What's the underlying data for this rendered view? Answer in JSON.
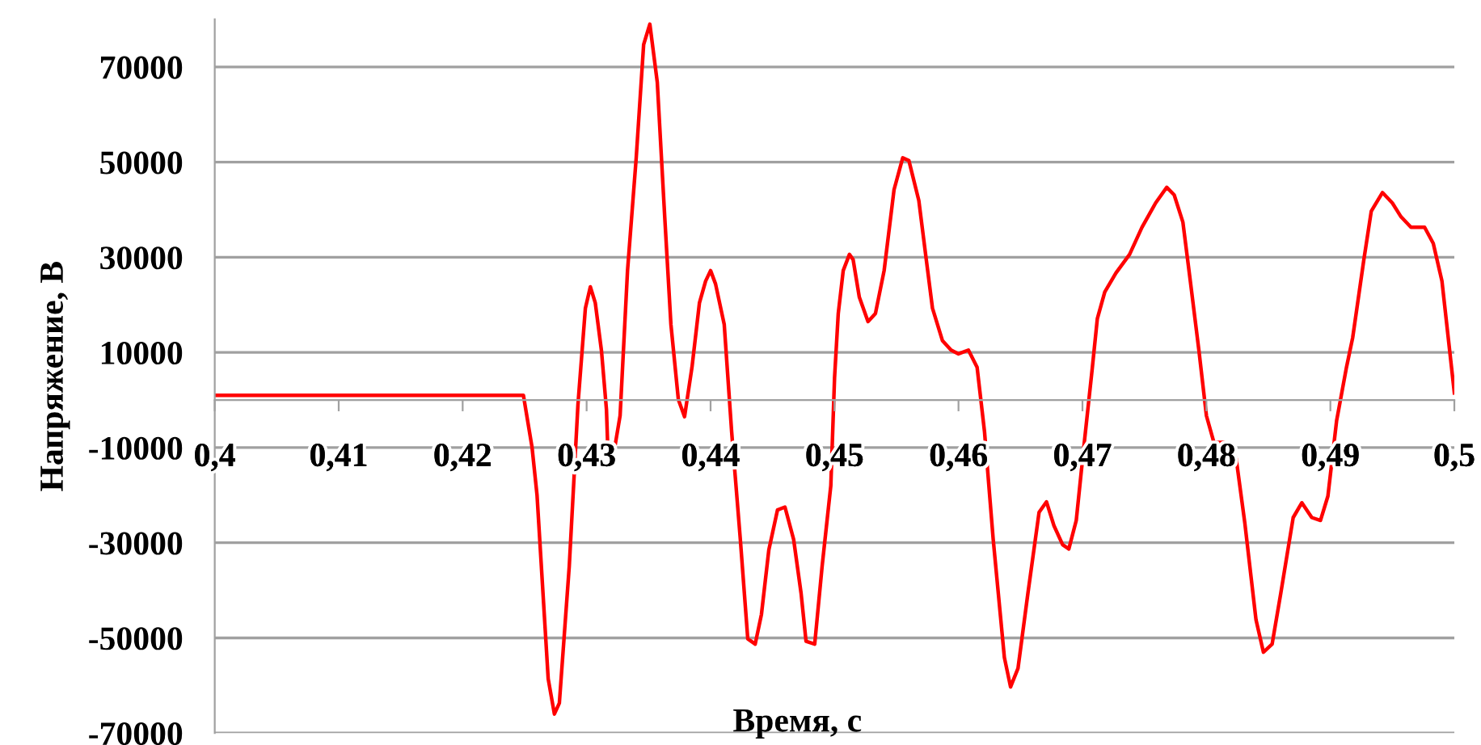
{
  "chart_data": {
    "type": "line",
    "xlabel": "Время, с",
    "ylabel": "Напряжение, В",
    "xlim": [
      0.4,
      0.5
    ],
    "ylim": [
      -70000,
      80000
    ],
    "xticks": [
      {
        "value": 0.4,
        "label": "0,4"
      },
      {
        "value": 0.41,
        "label": "0,41"
      },
      {
        "value": 0.42,
        "label": "0,42"
      },
      {
        "value": 0.43,
        "label": "0,43"
      },
      {
        "value": 0.44,
        "label": "0,44"
      },
      {
        "value": 0.45,
        "label": "0,45"
      },
      {
        "value": 0.46,
        "label": "0,46"
      },
      {
        "value": 0.47,
        "label": "0,47"
      },
      {
        "value": 0.48,
        "label": "0,48"
      },
      {
        "value": 0.49,
        "label": "0,49"
      },
      {
        "value": 0.5,
        "label": "0,5"
      }
    ],
    "yticks": [
      -70000,
      -50000,
      -30000,
      -10000,
      10000,
      30000,
      50000,
      70000
    ],
    "grid": "y",
    "legend": false,
    "marker": "none",
    "line_style": "solid",
    "series": [
      {
        "color": "#ff0000",
        "x": [
          0.4,
          0.4249,
          0.4256,
          0.426,
          0.4269,
          0.4274,
          0.4278,
          0.4286,
          0.4293,
          0.4299,
          0.4303,
          0.4307,
          0.4312,
          0.4316,
          0.4317,
          0.4323,
          0.4327,
          0.4333,
          0.434,
          0.4346,
          0.4351,
          0.4357,
          0.4363,
          0.4368,
          0.4374,
          0.4379,
          0.4385,
          0.4391,
          0.4396,
          0.44,
          0.4404,
          0.4411,
          0.4417,
          0.4424,
          0.443,
          0.4436,
          0.4441,
          0.4447,
          0.4454,
          0.446,
          0.4467,
          0.4473,
          0.4477,
          0.4484,
          0.449,
          0.4497,
          0.45,
          0.4503,
          0.4507,
          0.4512,
          0.4515,
          0.452,
          0.4527,
          0.4533,
          0.454,
          0.4548,
          0.4555,
          0.456,
          0.4568,
          0.4574,
          0.4579,
          0.4587,
          0.4594,
          0.46,
          0.4608,
          0.4615,
          0.4621,
          0.4628,
          0.4637,
          0.4642,
          0.4648,
          0.4656,
          0.4665,
          0.4671,
          0.4677,
          0.4684,
          0.4689,
          0.4695,
          0.4701,
          0.4708,
          0.4712,
          0.4718,
          0.4727,
          0.4738,
          0.4748,
          0.4759,
          0.4768,
          0.4774,
          0.4781,
          0.4787,
          0.4794,
          0.48,
          0.4806,
          0.4817,
          0.4824,
          0.4831,
          0.484,
          0.4846,
          0.4853,
          0.486,
          0.487,
          0.4877,
          0.4885,
          0.4892,
          0.4898,
          0.4905,
          0.4913,
          0.4918,
          0.4927,
          0.4933,
          0.4942,
          0.495,
          0.4957,
          0.4965,
          0.4976,
          0.4983,
          0.499,
          0.5
        ],
        "values": [
          1000,
          1000,
          -10000,
          -20000,
          -58600,
          -66000,
          -63700,
          -34900,
          -1000,
          19300,
          23800,
          20400,
          10300,
          -2000,
          -9500,
          -9500,
          -3300,
          27200,
          50900,
          74700,
          79000,
          66800,
          38500,
          15900,
          100,
          -3500,
          6900,
          20400,
          25000,
          27200,
          24400,
          15900,
          -6700,
          -29300,
          -50200,
          -51300,
          -45100,
          -31500,
          -23100,
          -22500,
          -29300,
          -40600,
          -50700,
          -51300,
          -34900,
          -18000,
          4600,
          18200,
          27200,
          30600,
          29500,
          21600,
          16500,
          18200,
          27200,
          44200,
          50900,
          50300,
          41900,
          29500,
          19300,
          12500,
          10500,
          9700,
          10500,
          6900,
          -6700,
          -29300,
          -54100,
          -60300,
          -56400,
          -40600,
          -23600,
          -21400,
          -26400,
          -30400,
          -31300,
          -25300,
          -10100,
          6900,
          17100,
          22700,
          26700,
          30600,
          36300,
          41400,
          44700,
          43100,
          37400,
          25000,
          10300,
          -3300,
          -8900,
          -8900,
          -12300,
          -25900,
          -46200,
          -53000,
          -51300,
          -40600,
          -24700,
          -21600,
          -24700,
          -25300,
          -20200,
          -4400,
          6900,
          13100,
          29500,
          39700,
          43600,
          41400,
          38500,
          36300,
          36300,
          32900,
          25000,
          1500
        ]
      }
    ]
  }
}
